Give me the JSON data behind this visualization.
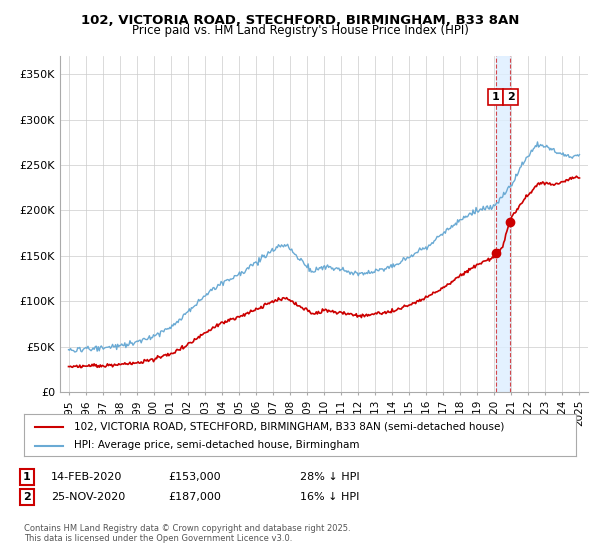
{
  "title": "102, VICTORIA ROAD, STECHFORD, BIRMINGHAM, B33 8AN",
  "subtitle": "Price paid vs. HM Land Registry's House Price Index (HPI)",
  "footer": "Contains HM Land Registry data © Crown copyright and database right 2025.\nThis data is licensed under the Open Government Licence v3.0.",
  "legend_line1": "102, VICTORIA ROAD, STECHFORD, BIRMINGHAM, B33 8AN (semi-detached house)",
  "legend_line2": "HPI: Average price, semi-detached house, Birmingham",
  "annotation1_date": "14-FEB-2020",
  "annotation1_price": "£153,000",
  "annotation1_hpi": "28% ↓ HPI",
  "annotation2_date": "25-NOV-2020",
  "annotation2_price": "£187,000",
  "annotation2_hpi": "16% ↓ HPI",
  "sale1_x": 2020.12,
  "sale1_y": 153000,
  "sale2_x": 2020.9,
  "sale2_y": 187000,
  "vline_x1": 2020.12,
  "vline_x2": 2020.9,
  "hpi_color": "#6aaad4",
  "sold_color": "#cc0000",
  "vline_color": "#cc0000",
  "shade_color": "#ddeeff",
  "background_color": "#ffffff",
  "grid_color": "#cccccc",
  "ylim": [
    0,
    370000
  ],
  "xlim": [
    1994.5,
    2025.5
  ],
  "yticks": [
    0,
    50000,
    100000,
    150000,
    200000,
    250000,
    300000,
    350000
  ],
  "ytick_labels": [
    "£0",
    "£50K",
    "£100K",
    "£150K",
    "£200K",
    "£250K",
    "£300K",
    "£350K"
  ],
  "xticks": [
    1995,
    1996,
    1997,
    1998,
    1999,
    2000,
    2001,
    2002,
    2003,
    2004,
    2005,
    2006,
    2007,
    2008,
    2009,
    2010,
    2011,
    2012,
    2013,
    2014,
    2015,
    2016,
    2017,
    2018,
    2019,
    2020,
    2021,
    2022,
    2023,
    2024,
    2025
  ]
}
